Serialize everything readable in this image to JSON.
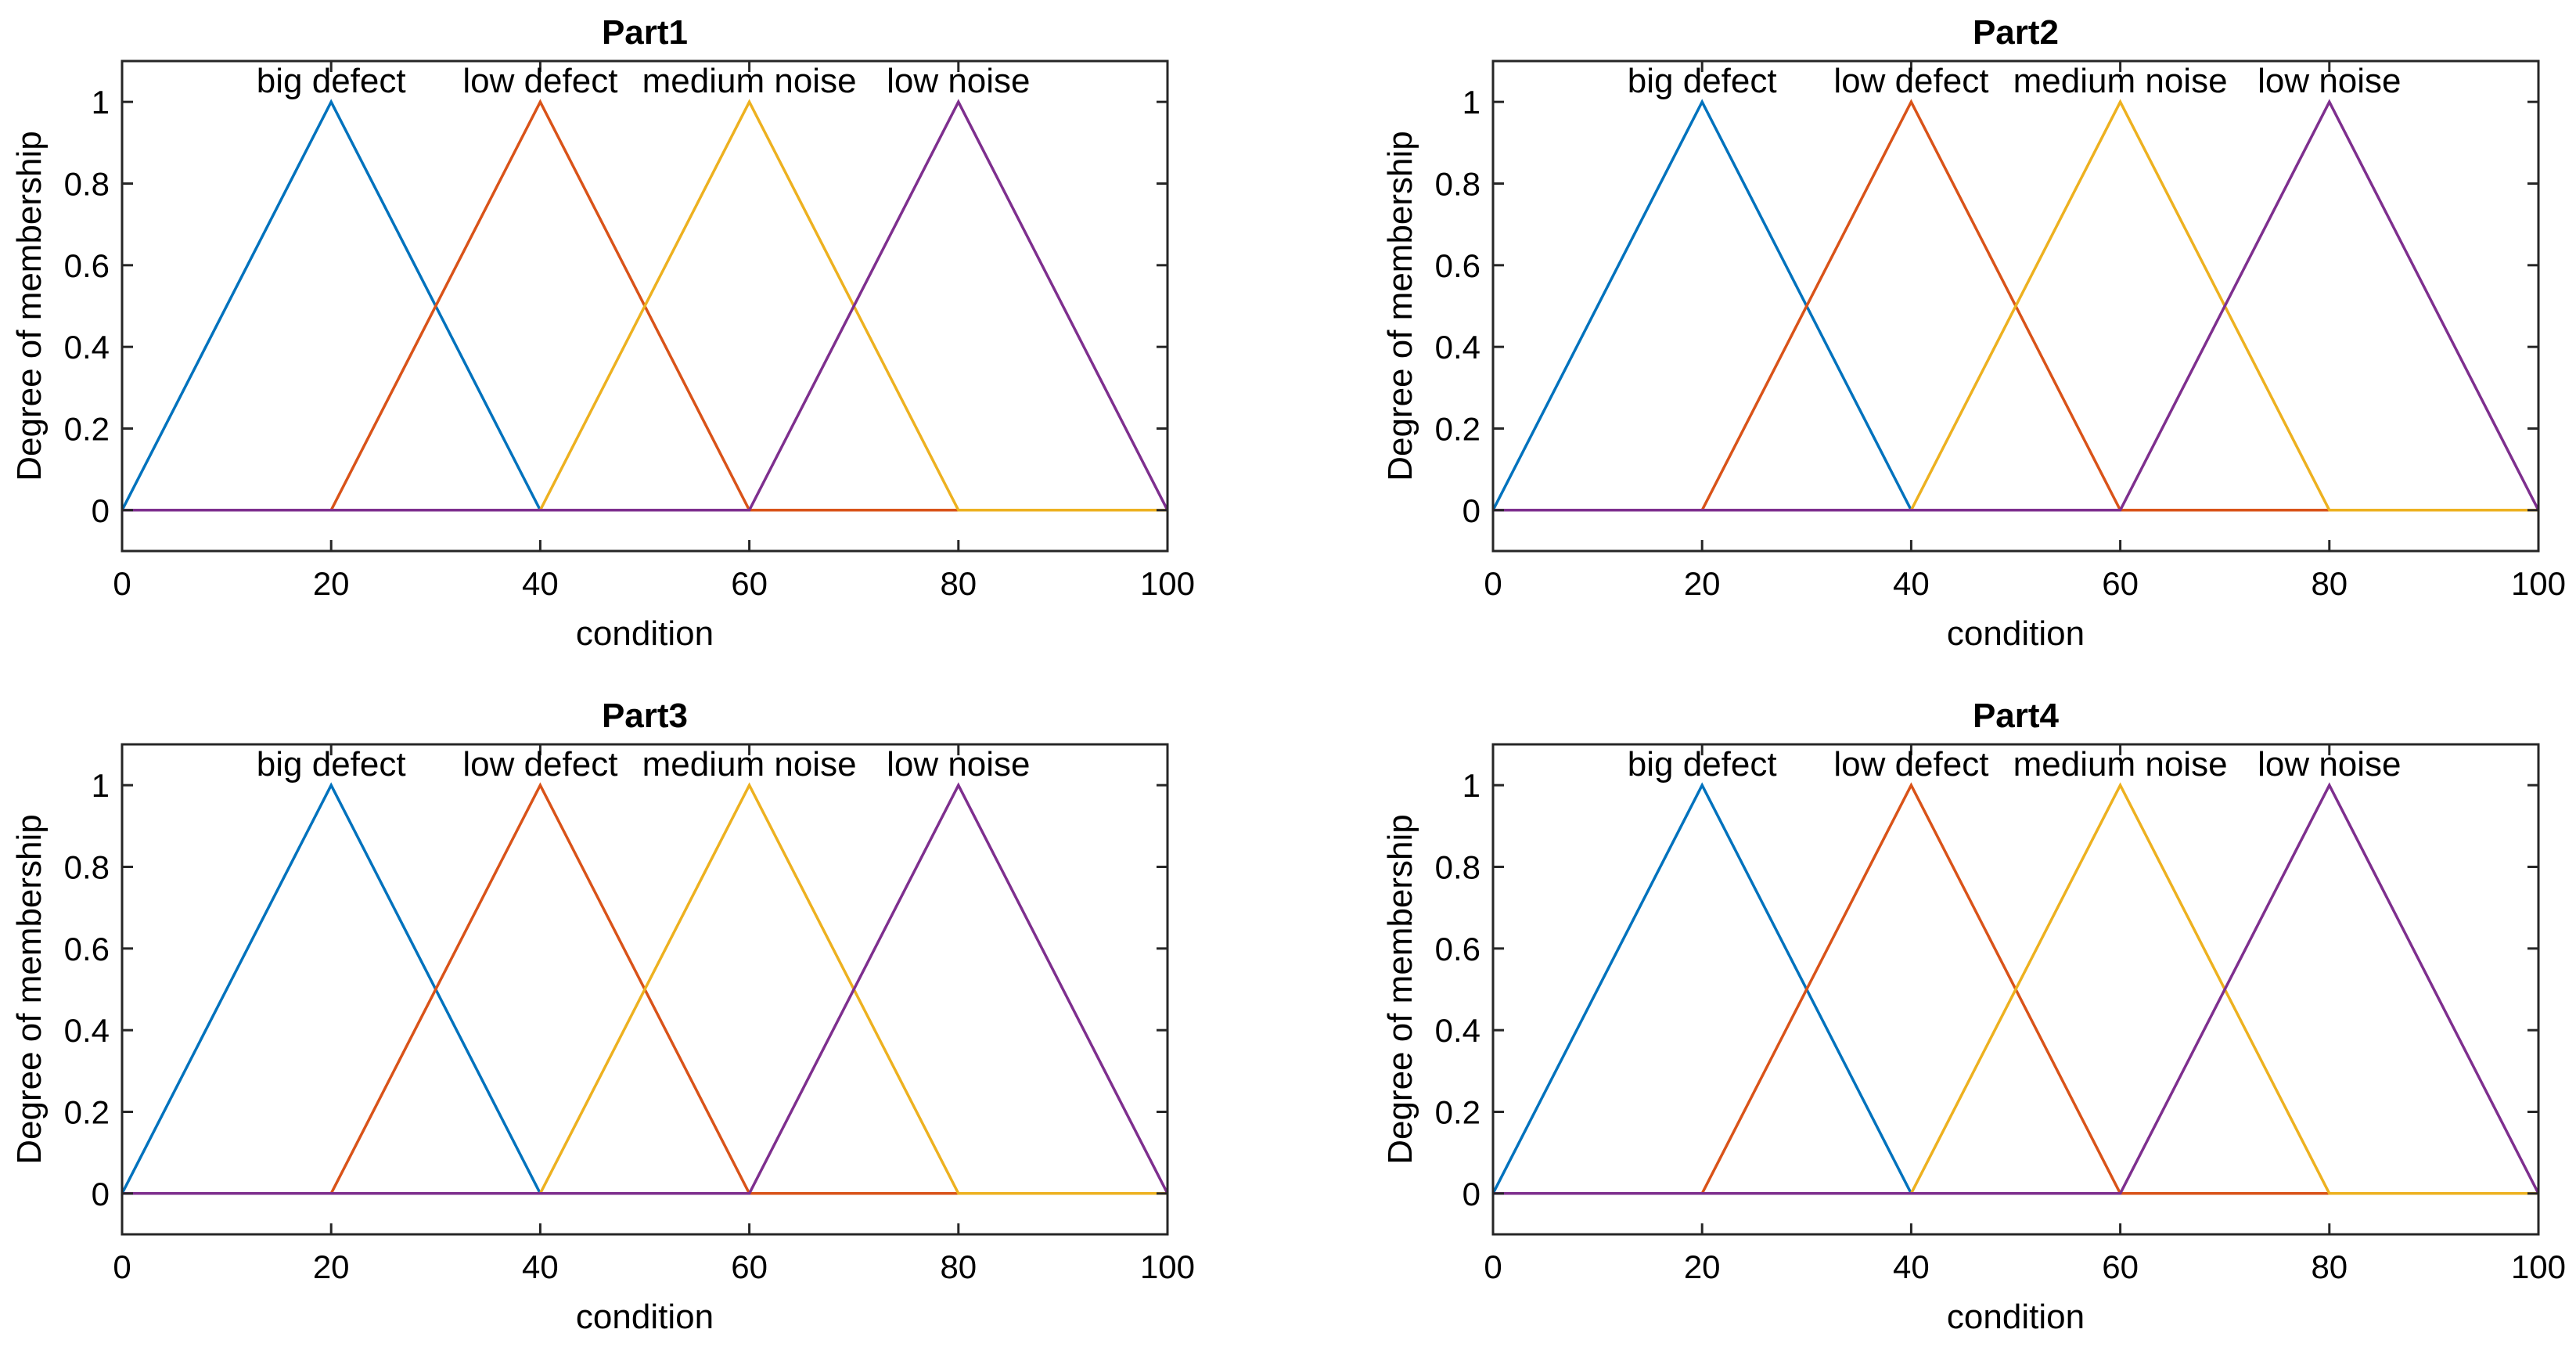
{
  "chart_data": [
    {
      "type": "line",
      "title": "Part1",
      "xlabel": "condition",
      "ylabel": "Degree of membership",
      "xlim": [
        0,
        100
      ],
      "ylim": [
        -0.1,
        1.1
      ],
      "xticks": [
        0,
        20,
        40,
        60,
        80,
        100
      ],
      "yticks": [
        0,
        0.2,
        0.4,
        0.6,
        0.8,
        1
      ],
      "xtick_labels": [
        "0",
        "20",
        "40",
        "60",
        "80",
        "100"
      ],
      "ytick_labels": [
        "0",
        "0.2",
        "0.4",
        "0.6",
        "0.8",
        "1"
      ],
      "series": [
        {
          "name": "big defect",
          "color": "#0072BD",
          "x": [
            0,
            20,
            40,
            100
          ],
          "y": [
            0,
            1,
            0,
            0
          ],
          "peak_x": 20
        },
        {
          "name": "low defect",
          "color": "#D95319",
          "x": [
            0,
            20,
            40,
            60,
            100
          ],
          "y": [
            0,
            0,
            1,
            0,
            0
          ],
          "peak_x": 40
        },
        {
          "name": "medium noise",
          "color": "#EDB120",
          "x": [
            0,
            40,
            60,
            80,
            100
          ],
          "y": [
            0,
            0,
            1,
            0,
            0
          ],
          "peak_x": 60
        },
        {
          "name": "low noise",
          "color": "#7E2F8E",
          "x": [
            0,
            60,
            80,
            100
          ],
          "y": [
            0,
            0,
            1,
            0
          ],
          "peak_x": 80
        }
      ]
    },
    {
      "type": "line",
      "title": "Part2",
      "xlabel": "condition",
      "ylabel": "Degree of membership",
      "xlim": [
        0,
        100
      ],
      "ylim": [
        -0.1,
        1.1
      ],
      "xticks": [
        0,
        20,
        40,
        60,
        80,
        100
      ],
      "yticks": [
        0,
        0.2,
        0.4,
        0.6,
        0.8,
        1
      ],
      "xtick_labels": [
        "0",
        "20",
        "40",
        "60",
        "80",
        "100"
      ],
      "ytick_labels": [
        "0",
        "0.2",
        "0.4",
        "0.6",
        "0.8",
        "1"
      ],
      "series": [
        {
          "name": "big defect",
          "color": "#0072BD",
          "x": [
            0,
            20,
            40,
            100
          ],
          "y": [
            0,
            1,
            0,
            0
          ],
          "peak_x": 20
        },
        {
          "name": "low defect",
          "color": "#D95319",
          "x": [
            0,
            20,
            40,
            60,
            100
          ],
          "y": [
            0,
            0,
            1,
            0,
            0
          ],
          "peak_x": 40
        },
        {
          "name": "medium noise",
          "color": "#EDB120",
          "x": [
            0,
            40,
            60,
            80,
            100
          ],
          "y": [
            0,
            0,
            1,
            0,
            0
          ],
          "peak_x": 60
        },
        {
          "name": "low noise",
          "color": "#7E2F8E",
          "x": [
            0,
            60,
            80,
            100
          ],
          "y": [
            0,
            0,
            1,
            0
          ],
          "peak_x": 80
        }
      ]
    },
    {
      "type": "line",
      "title": "Part3",
      "xlabel": "condition",
      "ylabel": "Degree of membership",
      "xlim": [
        0,
        100
      ],
      "ylim": [
        -0.1,
        1.1
      ],
      "xticks": [
        0,
        20,
        40,
        60,
        80,
        100
      ],
      "yticks": [
        0,
        0.2,
        0.4,
        0.6,
        0.8,
        1
      ],
      "xtick_labels": [
        "0",
        "20",
        "40",
        "60",
        "80",
        "100"
      ],
      "ytick_labels": [
        "0",
        "0.2",
        "0.4",
        "0.6",
        "0.8",
        "1"
      ],
      "series": [
        {
          "name": "big defect",
          "color": "#0072BD",
          "x": [
            0,
            20,
            40,
            100
          ],
          "y": [
            0,
            1,
            0,
            0
          ],
          "peak_x": 20
        },
        {
          "name": "low defect",
          "color": "#D95319",
          "x": [
            0,
            20,
            40,
            60,
            100
          ],
          "y": [
            0,
            0,
            1,
            0,
            0
          ],
          "peak_x": 40
        },
        {
          "name": "medium noise",
          "color": "#EDB120",
          "x": [
            0,
            40,
            60,
            80,
            100
          ],
          "y": [
            0,
            0,
            1,
            0,
            0
          ],
          "peak_x": 60
        },
        {
          "name": "low noise",
          "color": "#7E2F8E",
          "x": [
            0,
            60,
            80,
            100
          ],
          "y": [
            0,
            0,
            1,
            0
          ],
          "peak_x": 80
        }
      ]
    },
    {
      "type": "line",
      "title": "Part4",
      "xlabel": "condition",
      "ylabel": "Degree of membership",
      "xlim": [
        0,
        100
      ],
      "ylim": [
        -0.1,
        1.1
      ],
      "xticks": [
        0,
        20,
        40,
        60,
        80,
        100
      ],
      "yticks": [
        0,
        0.2,
        0.4,
        0.6,
        0.8,
        1
      ],
      "xtick_labels": [
        "0",
        "20",
        "40",
        "60",
        "80",
        "100"
      ],
      "ytick_labels": [
        "0",
        "0.2",
        "0.4",
        "0.6",
        "0.8",
        "1"
      ],
      "series": [
        {
          "name": "big defect",
          "color": "#0072BD",
          "x": [
            0,
            20,
            40,
            100
          ],
          "y": [
            0,
            1,
            0,
            0
          ],
          "peak_x": 20
        },
        {
          "name": "low defect",
          "color": "#D95319",
          "x": [
            0,
            20,
            40,
            60,
            100
          ],
          "y": [
            0,
            0,
            1,
            0,
            0
          ],
          "peak_x": 40
        },
        {
          "name": "medium noise",
          "color": "#EDB120",
          "x": [
            0,
            40,
            60,
            80,
            100
          ],
          "y": [
            0,
            0,
            1,
            0,
            0
          ],
          "peak_x": 60
        },
        {
          "name": "low noise",
          "color": "#7E2F8E",
          "x": [
            0,
            60,
            80,
            100
          ],
          "y": [
            0,
            0,
            1,
            0
          ],
          "peak_x": 80
        }
      ]
    }
  ]
}
